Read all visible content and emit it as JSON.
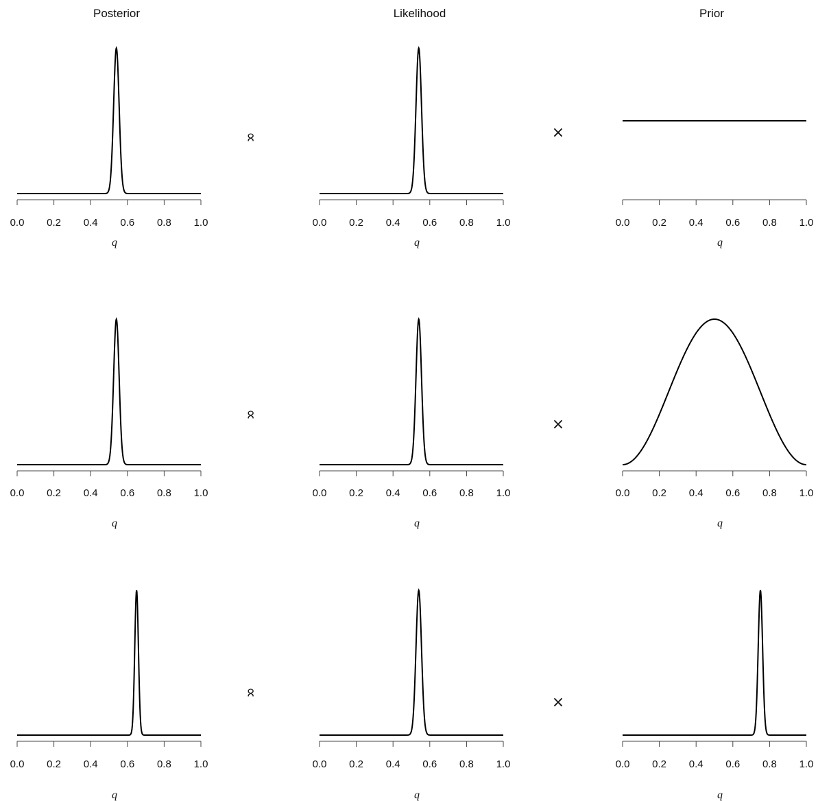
{
  "column_titles": [
    "Posterior",
    "Likelihood",
    "Prior"
  ],
  "operators": {
    "proportional": "∝",
    "times": "×"
  },
  "chart_data": [
    {
      "id": "r1-posterior",
      "type": "line",
      "title": "Posterior",
      "xlabel": "q",
      "ylabel": "",
      "xlim": [
        0,
        1
      ],
      "x_ticks": [
        "0.0",
        "0.2",
        "0.4",
        "0.6",
        "0.8",
        "1.0"
      ],
      "curve": {
        "kind": "normal",
        "peak_x": 0.54,
        "sd": 0.015
      }
    },
    {
      "id": "r1-likelihood",
      "type": "line",
      "title": "Likelihood",
      "xlabel": "q",
      "ylabel": "",
      "xlim": [
        0,
        1
      ],
      "x_ticks": [
        "0.0",
        "0.2",
        "0.4",
        "0.6",
        "0.8",
        "1.0"
      ],
      "curve": {
        "kind": "normal",
        "peak_x": 0.54,
        "sd": 0.015
      }
    },
    {
      "id": "r1-prior",
      "type": "line",
      "title": "Prior",
      "xlabel": "q",
      "ylabel": "",
      "xlim": [
        0,
        1
      ],
      "x_ticks": [
        "0.0",
        "0.2",
        "0.4",
        "0.6",
        "0.8",
        "1.0"
      ],
      "curve": {
        "kind": "uniform",
        "level": 1.0
      }
    },
    {
      "id": "r2-posterior",
      "type": "line",
      "title": "",
      "xlabel": "q",
      "ylabel": "",
      "xlim": [
        0,
        1
      ],
      "x_ticks": [
        "0.0",
        "0.2",
        "0.4",
        "0.6",
        "0.8",
        "1.0"
      ],
      "curve": {
        "kind": "normal",
        "peak_x": 0.54,
        "sd": 0.015
      }
    },
    {
      "id": "r2-likelihood",
      "type": "line",
      "title": "",
      "xlabel": "q",
      "ylabel": "",
      "xlim": [
        0,
        1
      ],
      "x_ticks": [
        "0.0",
        "0.2",
        "0.4",
        "0.6",
        "0.8",
        "1.0"
      ],
      "curve": {
        "kind": "normal",
        "peak_x": 0.54,
        "sd": 0.015
      }
    },
    {
      "id": "r2-prior",
      "type": "line",
      "title": "",
      "xlabel": "q",
      "ylabel": "",
      "xlim": [
        0,
        1
      ],
      "x_ticks": [
        "0.0",
        "0.2",
        "0.4",
        "0.6",
        "0.8",
        "1.0"
      ],
      "curve": {
        "kind": "bump",
        "peak_x": 0.5,
        "description": "smooth symmetric bell from 0 at q=0 to max at q=0.5 to 0 at q=1"
      }
    },
    {
      "id": "r3-posterior",
      "type": "line",
      "title": "",
      "xlabel": "q",
      "ylabel": "",
      "xlim": [
        0,
        1
      ],
      "x_ticks": [
        "0.0",
        "0.2",
        "0.4",
        "0.6",
        "0.8",
        "1.0"
      ],
      "curve": {
        "kind": "normal",
        "peak_x": 0.65,
        "sd": 0.01
      }
    },
    {
      "id": "r3-likelihood",
      "type": "line",
      "title": "",
      "xlabel": "q",
      "ylabel": "",
      "xlim": [
        0,
        1
      ],
      "x_ticks": [
        "0.0",
        "0.2",
        "0.4",
        "0.6",
        "0.8",
        "1.0"
      ],
      "curve": {
        "kind": "normal",
        "peak_x": 0.54,
        "sd": 0.015
      }
    },
    {
      "id": "r3-prior",
      "type": "line",
      "title": "",
      "xlabel": "q",
      "ylabel": "",
      "xlim": [
        0,
        1
      ],
      "x_ticks": [
        "0.0",
        "0.2",
        "0.4",
        "0.6",
        "0.8",
        "1.0"
      ],
      "curve": {
        "kind": "normal",
        "peak_x": 0.75,
        "sd": 0.012
      }
    }
  ]
}
